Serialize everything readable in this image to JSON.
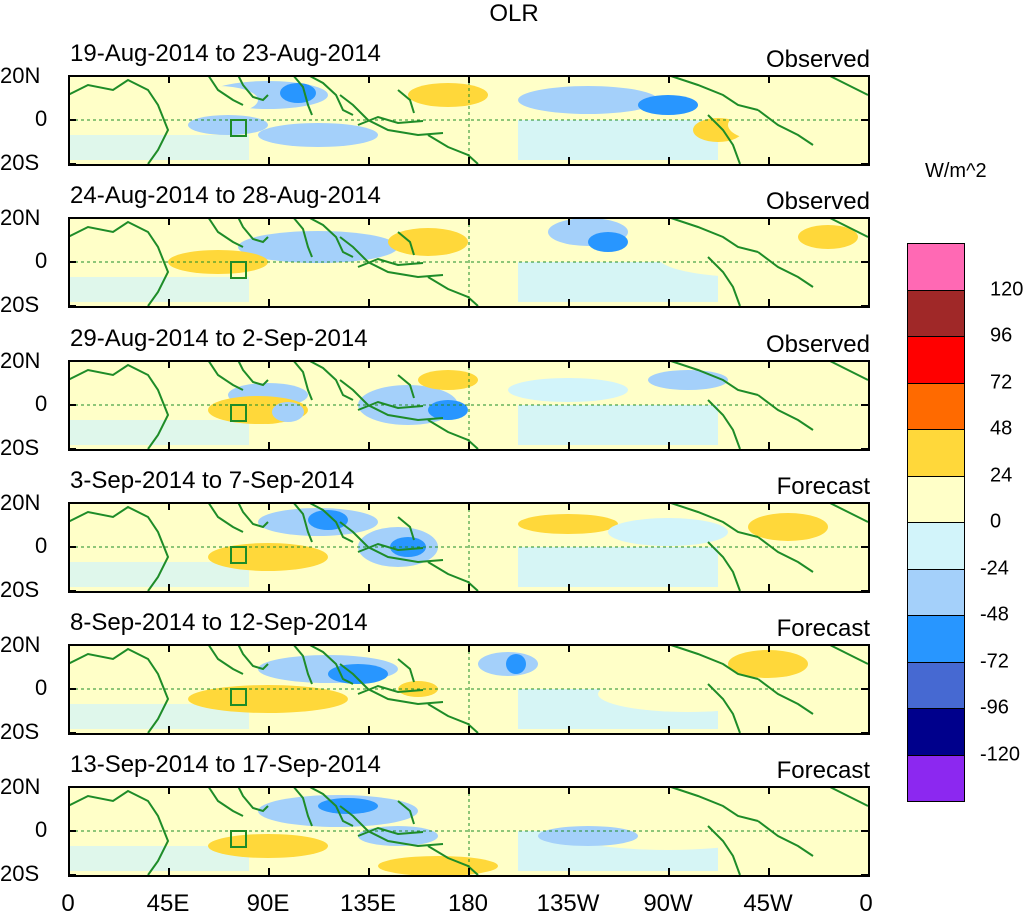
{
  "title": "OLR",
  "panels": [
    {
      "date_range": "19-Aug-2014 to 23-Aug-2014",
      "type": "Observed"
    },
    {
      "date_range": "24-Aug-2014 to 28-Aug-2014",
      "type": "Observed"
    },
    {
      "date_range": "29-Aug-2014 to 2-Sep-2014",
      "type": "Observed"
    },
    {
      "date_range": "3-Sep-2014 to 7-Sep-2014",
      "type": "Forecast"
    },
    {
      "date_range": "8-Sep-2014 to 12-Sep-2014",
      "type": "Forecast"
    },
    {
      "date_range": "13-Sep-2014 to 17-Sep-2014",
      "type": "Forecast"
    }
  ],
  "y_labels": [
    "20N",
    "0",
    "20S"
  ],
  "x_labels": [
    "0",
    "45E",
    "90E",
    "135E",
    "180",
    "135W",
    "90W",
    "45W",
    "0"
  ],
  "colorbar": {
    "units": "W/m^2",
    "labels": [
      "120",
      "96",
      "72",
      "48",
      "24",
      "0",
      "-24",
      "-48",
      "-72",
      "-96",
      "-120"
    ],
    "colors": [
      "#ff69b4",
      "#a02828",
      "#ff0000",
      "#ff6a00",
      "#ffd83a",
      "#ffffc8",
      "#d2f4fa",
      "#a4d0fa",
      "#2896ff",
      "#4669d2",
      "#00008c",
      "#8c28f0"
    ]
  },
  "colors": {
    "coast": "#1e8c28",
    "positive": "#ffd83a",
    "positive_light": "#ffffc8",
    "negative_light": "#d2f4fa",
    "negative": "#a4d0fa",
    "negative_strong": "#2896ff"
  }
}
